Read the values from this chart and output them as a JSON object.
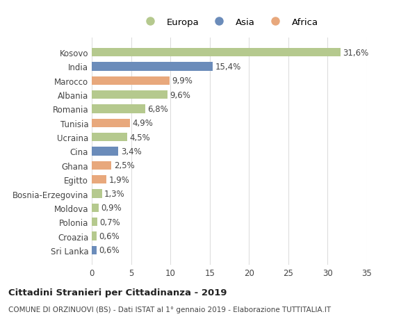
{
  "countries": [
    "Kosovo",
    "India",
    "Marocco",
    "Albania",
    "Romania",
    "Tunisia",
    "Ucraina",
    "Cina",
    "Ghana",
    "Egitto",
    "Bosnia-Erzegovina",
    "Moldova",
    "Polonia",
    "Croazia",
    "Sri Lanka"
  ],
  "values": [
    31.6,
    15.4,
    9.9,
    9.6,
    6.8,
    4.9,
    4.5,
    3.4,
    2.5,
    1.9,
    1.3,
    0.9,
    0.7,
    0.6,
    0.6
  ],
  "labels": [
    "31,6%",
    "15,4%",
    "9,9%",
    "9,6%",
    "6,8%",
    "4,9%",
    "4,5%",
    "3,4%",
    "2,5%",
    "1,9%",
    "1,3%",
    "0,9%",
    "0,7%",
    "0,6%",
    "0,6%"
  ],
  "continents": [
    "Europa",
    "Asia",
    "Africa",
    "Europa",
    "Europa",
    "Africa",
    "Europa",
    "Asia",
    "Africa",
    "Africa",
    "Europa",
    "Europa",
    "Europa",
    "Europa",
    "Asia"
  ],
  "colors": {
    "Europa": "#b5c98e",
    "Asia": "#6b8cba",
    "Africa": "#e8a87c"
  },
  "xlim": [
    0,
    35
  ],
  "xticks": [
    0,
    5,
    10,
    15,
    20,
    25,
    30,
    35
  ],
  "title": "Cittadini Stranieri per Cittadinanza - 2019",
  "subtitle": "COMUNE DI ORZINUOVI (BS) - Dati ISTAT al 1° gennaio 2019 - Elaborazione TUTTITALIA.IT",
  "background_color": "#ffffff",
  "grid_color": "#dddddd",
  "label_fontsize": 8.5,
  "tick_fontsize": 8.5
}
